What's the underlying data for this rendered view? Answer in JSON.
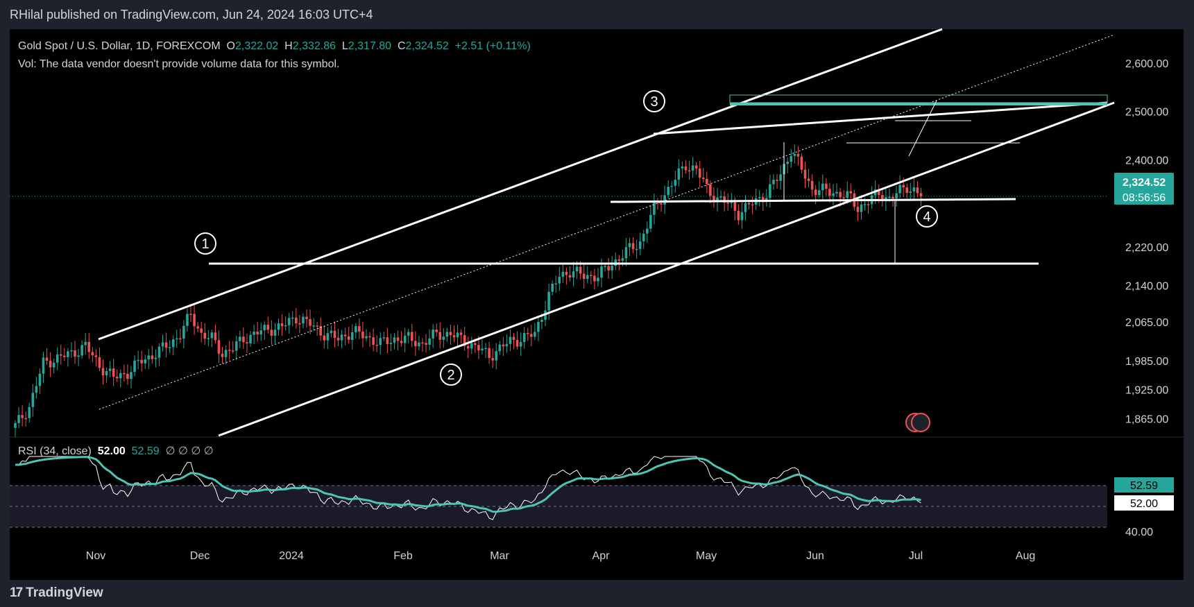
{
  "header": {
    "publisher": "RHilal published on TradingView.com, Jun 24, 2024 16:03 UTC+4"
  },
  "legend": {
    "symbol": "Gold Spot / U.S. Dollar, 1D, FOREXCOM",
    "o_label": "O",
    "o": "2,322.02",
    "h_label": "H",
    "h": "2,332.86",
    "l_label": "L",
    "l": "2,317.80",
    "c_label": "C",
    "c": "2,324.52",
    "change": "+2.51 (+0.11%)",
    "vol_note": "Vol: The data vendor doesn't provide volume data for this symbol."
  },
  "price_badge": {
    "price": "2,324.52",
    "countdown": "08:56:56"
  },
  "rsi": {
    "title": "RSI (34, close)",
    "value": "52.00",
    "ma": "52.59",
    "empty": "∅ ∅ ∅ ∅",
    "badge_ma": "52.59",
    "badge_value": "52.00",
    "ticks": [
      "40.00"
    ],
    "ylim": [
      35,
      75
    ],
    "levels": [
      60,
      50,
      40
    ]
  },
  "footer": {
    "brand": "TradingView"
  },
  "colors": {
    "up": "#26a69a",
    "down": "#ef5350",
    "rsi_line": "#ffffff",
    "rsi_ma": "#4fc3b4",
    "overlay": "#ffffff"
  },
  "chart_data": {
    "type": "candlestick",
    "title": "Gold Spot / U.S. Dollar, 1D, FOREXCOM",
    "y_ticks": [
      "2,600.00",
      "2,500.00",
      "2,400.00",
      "2,220.00",
      "2,140.00",
      "2,065.00",
      "1,985.00",
      "1,925.00",
      "1,865.00"
    ],
    "x_ticks": [
      "Nov",
      "Dec",
      "2024",
      "Feb",
      "Mar",
      "Apr",
      "May",
      "Jun",
      "Jul",
      "Aug"
    ],
    "ylim": [
      1830,
      2670
    ],
    "annotations": [
      "1",
      "2",
      "3",
      "4"
    ],
    "levels": {
      "upper_target": 2500,
      "resistance_1": 2150,
      "support_zone": 2280,
      "last_price": 2324.52
    },
    "anchors": [
      [
        0,
        1850
      ],
      [
        4,
        1890
      ],
      [
        8,
        1980
      ],
      [
        12,
        1990
      ],
      [
        16,
        2000
      ],
      [
        20,
        2015
      ],
      [
        24,
        1975
      ],
      [
        28,
        1950
      ],
      [
        32,
        1960
      ],
      [
        36,
        1985
      ],
      [
        40,
        2000
      ],
      [
        44,
        2020
      ],
      [
        47,
        2040
      ],
      [
        50,
        2080
      ],
      [
        53,
        2040
      ],
      [
        56,
        2030
      ],
      [
        59,
        2000
      ],
      [
        62,
        2010
      ],
      [
        65,
        2030
      ],
      [
        68,
        2040
      ],
      [
        72,
        2050
      ],
      [
        76,
        2055
      ],
      [
        80,
        2075
      ],
      [
        84,
        2060
      ],
      [
        88,
        2040
      ],
      [
        92,
        2030
      ],
      [
        96,
        2045
      ],
      [
        100,
        2035
      ],
      [
        104,
        2020
      ],
      [
        108,
        2030
      ],
      [
        112,
        2030
      ],
      [
        116,
        2020
      ],
      [
        120,
        2040
      ],
      [
        124,
        2040
      ],
      [
        128,
        2025
      ],
      [
        132,
        2010
      ],
      [
        135,
        1995
      ],
      [
        138,
        2010
      ],
      [
        141,
        2025
      ],
      [
        144,
        2030
      ],
      [
        148,
        2040
      ],
      [
        150,
        2080
      ],
      [
        152,
        2120
      ],
      [
        155,
        2160
      ],
      [
        158,
        2170
      ],
      [
        162,
        2160
      ],
      [
        166,
        2160
      ],
      [
        170,
        2185
      ],
      [
        174,
        2210
      ],
      [
        178,
        2230
      ],
      [
        180,
        2265
      ],
      [
        182,
        2300
      ],
      [
        185,
        2330
      ],
      [
        188,
        2360
      ],
      [
        191,
        2390
      ],
      [
        194,
        2380
      ],
      [
        197,
        2340
      ],
      [
        200,
        2320
      ],
      [
        203,
        2310
      ],
      [
        206,
        2290
      ],
      [
        210,
        2310
      ],
      [
        214,
        2330
      ],
      [
        218,
        2370
      ],
      [
        221,
        2420
      ],
      [
        224,
        2380
      ],
      [
        227,
        2340
      ],
      [
        231,
        2335
      ],
      [
        235,
        2330
      ],
      [
        238,
        2320
      ],
      [
        240,
        2300
      ],
      [
        243,
        2315
      ],
      [
        246,
        2330
      ],
      [
        249,
        2320
      ],
      [
        252,
        2335
      ],
      [
        254,
        2345
      ],
      [
        256,
        2337
      ],
      [
        258,
        2324.52
      ]
    ]
  }
}
